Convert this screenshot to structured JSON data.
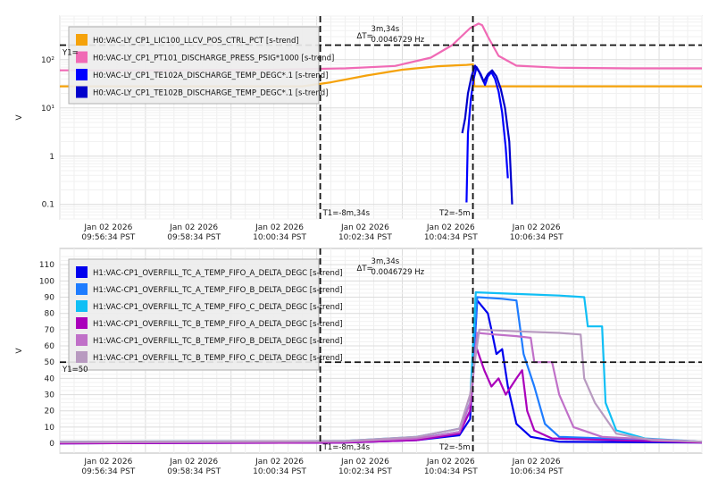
{
  "x_ticks": [
    "Jan 02 2026\n09:56:34 PST",
    "Jan 02 2026\n09:58:34 PST",
    "Jan 02 2026\n10:00:34 PST",
    "Jan 02 2026\n10:02:34 PST",
    "Jan 02 2026\n10:04:34 PST",
    "Jan 02 2026\n10:06:34 PST"
  ],
  "chart_data": [
    {
      "type": "line",
      "ylabel": "V",
      "y_scale": "log",
      "ylim": [
        0.05,
        800
      ],
      "y_ticks": [
        {
          "value": 0.1,
          "label": "0.1"
        },
        {
          "value": 1,
          "label": "1"
        },
        {
          "value": 10,
          "label": "10¹"
        },
        {
          "value": 100,
          "label": "10²"
        }
      ],
      "xlim_seconds": [
        0,
        900
      ],
      "cursors": {
        "t1_label": "T1=-8m,34s",
        "t2_label": "T2=-5m",
        "t1_value": 365,
        "t2_value": 579,
        "delta_label": "ΔT=",
        "delta_time": "3m,34s",
        "delta_freq": "0.0046729 Hz",
        "y1_label": "Y1=",
        "y1_value": 200
      },
      "series": [
        {
          "name": "H0:VAC-LY_CP1_LIC100_LLCV_POS_CTRL_PCT [s-trend]",
          "color": "#f5a20b",
          "points": [
            [
              0,
              28
            ],
            [
              340,
              28
            ],
            [
              380,
              34
            ],
            [
              430,
              47
            ],
            [
              480,
              62
            ],
            [
              530,
              73
            ],
            [
              570,
              78
            ],
            [
              579,
              80
            ],
            [
              581,
              28
            ],
            [
              900,
              28
            ]
          ]
        },
        {
          "name": "H0:VAC-LY_CP1_PT101_DISCHARGE_PRESS_PSIG*1000 [s-trend]",
          "color": "#f06ab5",
          "points": [
            [
              0,
              60
            ],
            [
              150,
              60
            ],
            [
              300,
              62
            ],
            [
              400,
              66
            ],
            [
              470,
              74
            ],
            [
              520,
              110
            ],
            [
              550,
              200
            ],
            [
              575,
              450
            ],
            [
              587,
              560
            ],
            [
              592,
              520
            ],
            [
              600,
              300
            ],
            [
              615,
              120
            ],
            [
              640,
              75
            ],
            [
              700,
              68
            ],
            [
              800,
              66
            ],
            [
              900,
              66
            ]
          ]
        },
        {
          "name": "H0:VAC-LY_CP1_TE102A_DISCHARGE_TEMP_DEGC*.1 [s-trend]",
          "color": "#0000ff",
          "points": [
            [
              570,
              0.11
            ],
            [
              572,
              3
            ],
            [
              576,
              15
            ],
            [
              580,
              40
            ],
            [
              584,
              70
            ],
            [
              590,
              50
            ],
            [
              596,
              30
            ],
            [
              600,
              45
            ],
            [
              605,
              55
            ],
            [
              610,
              40
            ],
            [
              615,
              22
            ],
            [
              620,
              8
            ],
            [
              625,
              1.5
            ],
            [
              628,
              0.35
            ]
          ]
        },
        {
          "name": "H0:VAC-LY_CP1_TE102B_DISCHARGE_TEMP_DEGC*.1 [s-trend]",
          "color": "#0000cc",
          "points": [
            [
              564,
              3
            ],
            [
              568,
              6
            ],
            [
              572,
              20
            ],
            [
              577,
              45
            ],
            [
              582,
              75
            ],
            [
              588,
              55
            ],
            [
              594,
              35
            ],
            [
              600,
              50
            ],
            [
              606,
              60
            ],
            [
              612,
              45
            ],
            [
              618,
              25
            ],
            [
              624,
              10
            ],
            [
              630,
              2
            ],
            [
              634,
              0.1
            ]
          ]
        }
      ]
    },
    {
      "type": "line",
      "ylabel": "V",
      "ylim": [
        -6,
        120
      ],
      "y_ticks": [
        0,
        10,
        20,
        30,
        40,
        50,
        60,
        70,
        80,
        90,
        100,
        110
      ],
      "xlim_seconds": [
        0,
        900
      ],
      "cursors": {
        "t1_label": "T1=-8m,34s",
        "t2_label": "T2=-5m",
        "t1_value": 365,
        "t2_value": 579,
        "delta_label": "ΔT=",
        "delta_time": "3m,34s",
        "delta_freq": "0.0046729 Hz",
        "y1_label": "Y1=50",
        "y1_value": 50
      },
      "series": [
        {
          "name": "H1:VAC-CP1_OVERFILL_TC_A_TEMP_FIFO_A_DELTA_DEGC [s-trend]",
          "color": "#0000ee",
          "points": [
            [
              0,
              0
            ],
            [
              400,
              0.5
            ],
            [
              500,
              2
            ],
            [
              560,
              5
            ],
            [
              575,
              15
            ],
            [
              585,
              88
            ],
            [
              600,
              80
            ],
            [
              605,
              70
            ],
            [
              612,
              55
            ],
            [
              620,
              58
            ],
            [
              628,
              35
            ],
            [
              640,
              12
            ],
            [
              660,
              4
            ],
            [
              700,
              1
            ],
            [
              900,
              0.5
            ]
          ]
        },
        {
          "name": "H1:VAC-CP1_OVERFILL_TC_A_TEMP_FIFO_B_DELTA_DEGC [s-trend]",
          "color": "#1e7cff",
          "points": [
            [
              0,
              0.5
            ],
            [
              400,
              1
            ],
            [
              500,
              3
            ],
            [
              560,
              7
            ],
            [
              575,
              20
            ],
            [
              585,
              90
            ],
            [
              620,
              89
            ],
            [
              640,
              88
            ],
            [
              650,
              55
            ],
            [
              665,
              35
            ],
            [
              680,
              12
            ],
            [
              700,
              4
            ],
            [
              900,
              1
            ]
          ]
        },
        {
          "name": "H1:VAC-CP1_OVERFILL_TC_A_TEMP_FIFO_C_DELTA_DEGC [s-trend]",
          "color": "#10bff5",
          "points": [
            [
              0,
              1
            ],
            [
              400,
              1.5
            ],
            [
              500,
              4
            ],
            [
              560,
              9
            ],
            [
              575,
              25
            ],
            [
              583,
              93
            ],
            [
              640,
              92
            ],
            [
              700,
              91
            ],
            [
              735,
              90
            ],
            [
              740,
              72
            ],
            [
              760,
              72
            ],
            [
              765,
              25
            ],
            [
              780,
              8
            ],
            [
              820,
              3
            ],
            [
              900,
              1
            ]
          ]
        },
        {
          "name": "H1:VAC-CP1_OVERFILL_TC_B_TEMP_FIFO_A_DELTA_DEGC [s-trend]",
          "color": "#aa00bb",
          "points": [
            [
              0,
              0
            ],
            [
              400,
              0.5
            ],
            [
              500,
              2
            ],
            [
              560,
              6
            ],
            [
              575,
              20
            ],
            [
              583,
              60
            ],
            [
              595,
              45
            ],
            [
              605,
              35
            ],
            [
              615,
              40
            ],
            [
              625,
              30
            ],
            [
              640,
              40
            ],
            [
              648,
              45
            ],
            [
              655,
              20
            ],
            [
              665,
              8
            ],
            [
              690,
              3
            ],
            [
              900,
              0.5
            ]
          ]
        },
        {
          "name": "H1:VAC-CP1_OVERFILL_TC_B_TEMP_FIFO_B_DELTA_DEGC [s-trend]",
          "color": "#c070c8",
          "points": [
            [
              0,
              0.5
            ],
            [
              400,
              1
            ],
            [
              500,
              3
            ],
            [
              560,
              7
            ],
            [
              575,
              25
            ],
            [
              585,
              68
            ],
            [
              610,
              67
            ],
            [
              640,
              66
            ],
            [
              660,
              65
            ],
            [
              665,
              50
            ],
            [
              690,
              50
            ],
            [
              700,
              30
            ],
            [
              720,
              10
            ],
            [
              760,
              4
            ],
            [
              900,
              1
            ]
          ]
        },
        {
          "name": "H1:VAC-CP1_OVERFILL_TC_B_TEMP_FIFO_C_DELTA_DEGC [s-trend]",
          "color": "#b89ac0",
          "points": [
            [
              0,
              1
            ],
            [
              400,
              1.5
            ],
            [
              500,
              4
            ],
            [
              560,
              9
            ],
            [
              575,
              30
            ],
            [
              588,
              70
            ],
            [
              640,
              69
            ],
            [
              700,
              68
            ],
            [
              730,
              67
            ],
            [
              735,
              40
            ],
            [
              750,
              25
            ],
            [
              780,
              6
            ],
            [
              830,
              2
            ],
            [
              900,
              1
            ]
          ]
        }
      ]
    }
  ]
}
